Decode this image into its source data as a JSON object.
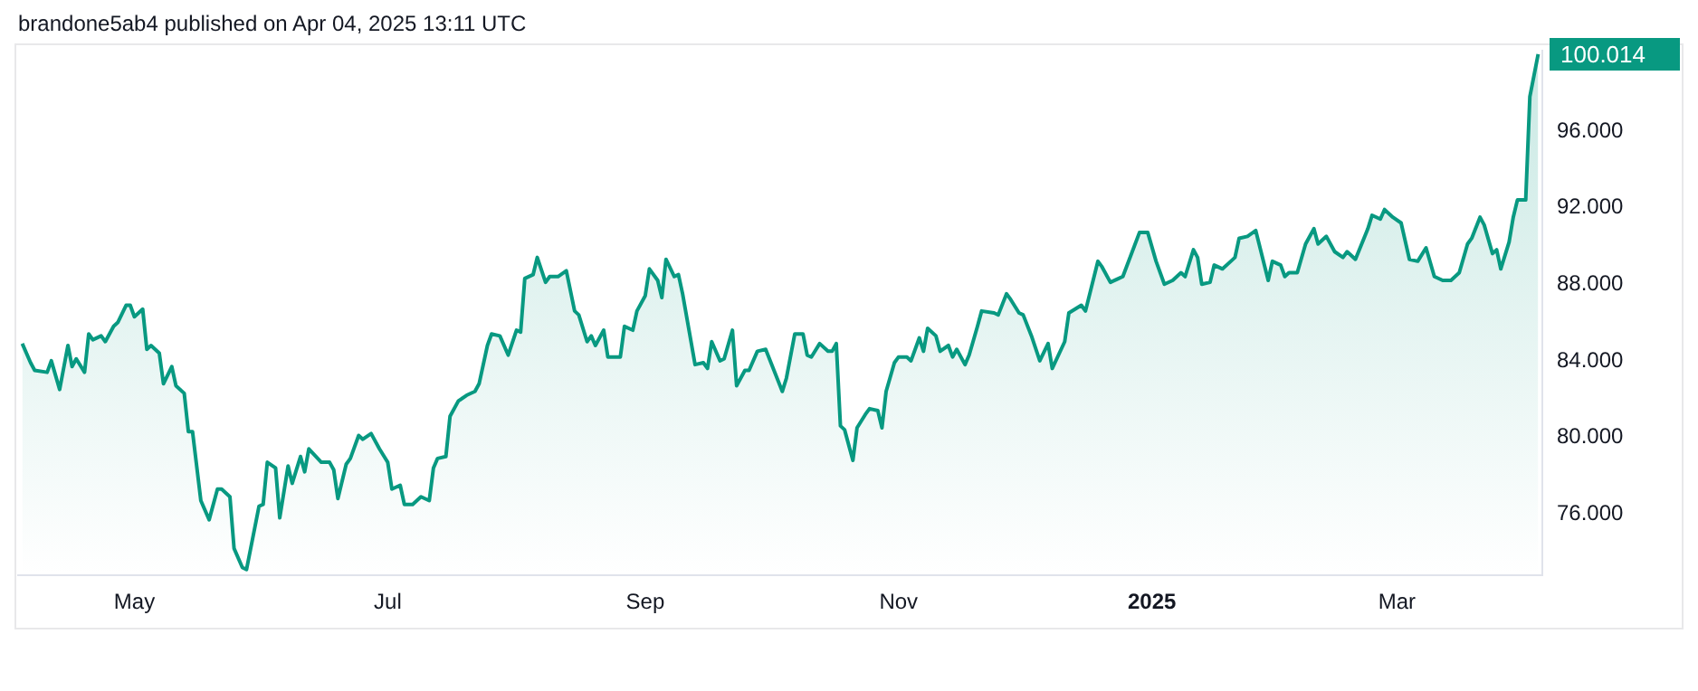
{
  "chart_data": {
    "type": "area",
    "legend": false,
    "grid": false,
    "annotations": [
      "brandone5ab4 published on Apr 04, 2025 13:11 UTC",
      "100.014"
    ],
    "xlim": [
      "2024-04-03",
      "2025-04-05"
    ],
    "xticks": [
      {
        "value": "2024-05-01",
        "label": "May"
      },
      {
        "value": "2024-07-01",
        "label": "Jul"
      },
      {
        "value": "2024-09-01",
        "label": "Sep"
      },
      {
        "value": "2024-11-01",
        "label": "Nov"
      },
      {
        "value": "2025-01-01",
        "label": "2025"
      },
      {
        "value": "2025-03-01",
        "label": "Mar"
      }
    ],
    "ylim": [
      72.8,
      100.2
    ],
    "yticks": [
      {
        "value": 76,
        "label": "76.000"
      },
      {
        "value": 80,
        "label": "80.000"
      },
      {
        "value": 84,
        "label": "84.000"
      },
      {
        "value": 88,
        "label": "88.000"
      },
      {
        "value": 92,
        "label": "92.000"
      },
      {
        "value": 96,
        "label": "96.000"
      }
    ],
    "series": [
      {
        "color": "#089981",
        "x": [
          "2024-04-04",
          "2024-04-06",
          "2024-04-07",
          "2024-04-10",
          "2024-04-11",
          "2024-04-13",
          "2024-04-15",
          "2024-04-16",
          "2024-04-17",
          "2024-04-19",
          "2024-04-20",
          "2024-04-21",
          "2024-04-23",
          "2024-04-24",
          "2024-04-26",
          "2024-04-27",
          "2024-04-29",
          "2024-04-30",
          "2024-05-01",
          "2024-05-03",
          "2024-05-04",
          "2024-05-05",
          "2024-05-07",
          "2024-05-08",
          "2024-05-10",
          "2024-05-11",
          "2024-05-13",
          "2024-05-14",
          "2024-05-15",
          "2024-05-17",
          "2024-05-19",
          "2024-05-21",
          "2024-05-22",
          "2024-05-24",
          "2024-05-25",
          "2024-05-27",
          "2024-05-28",
          "2024-05-31",
          "2024-06-01",
          "2024-06-02",
          "2024-06-04",
          "2024-06-05",
          "2024-06-07",
          "2024-06-08",
          "2024-06-10",
          "2024-06-11",
          "2024-06-12",
          "2024-06-15",
          "2024-06-17",
          "2024-06-18",
          "2024-06-19",
          "2024-06-21",
          "2024-06-22",
          "2024-06-24",
          "2024-06-25",
          "2024-06-27",
          "2024-06-29",
          "2024-07-01",
          "2024-07-02",
          "2024-07-04",
          "2024-07-05",
          "2024-07-07",
          "2024-07-09",
          "2024-07-11",
          "2024-07-12",
          "2024-07-13",
          "2024-07-15",
          "2024-07-16",
          "2024-07-18",
          "2024-07-20",
          "2024-07-22",
          "2024-07-23",
          "2024-07-25",
          "2024-07-26",
          "2024-07-28",
          "2024-07-30",
          "2024-08-01",
          "2024-08-02",
          "2024-08-03",
          "2024-08-05",
          "2024-08-06",
          "2024-08-08",
          "2024-08-09",
          "2024-08-11",
          "2024-08-13",
          "2024-08-15",
          "2024-08-16",
          "2024-08-18",
          "2024-08-19",
          "2024-08-20",
          "2024-08-22",
          "2024-08-23",
          "2024-08-26",
          "2024-08-27",
          "2024-08-29",
          "2024-08-30",
          "2024-09-01",
          "2024-09-02",
          "2024-09-04",
          "2024-09-05",
          "2024-09-06",
          "2024-09-08",
          "2024-09-09",
          "2024-09-10",
          "2024-09-13",
          "2024-09-15",
          "2024-09-16",
          "2024-09-17",
          "2024-09-19",
          "2024-09-20",
          "2024-09-22",
          "2024-09-23",
          "2024-09-25",
          "2024-09-26",
          "2024-09-28",
          "2024-09-30",
          "2024-10-02",
          "2024-10-04",
          "2024-10-05",
          "2024-10-07",
          "2024-10-09",
          "2024-10-10",
          "2024-10-11",
          "2024-10-13",
          "2024-10-15",
          "2024-10-16",
          "2024-10-17",
          "2024-10-18",
          "2024-10-19",
          "2024-10-21",
          "2024-10-22",
          "2024-10-24",
          "2024-10-25",
          "2024-10-27",
          "2024-10-28",
          "2024-10-29",
          "2024-10-31",
          "2024-11-01",
          "2024-11-03",
          "2024-11-04",
          "2024-11-06",
          "2024-11-07",
          "2024-11-08",
          "2024-11-10",
          "2024-11-11",
          "2024-11-13",
          "2024-11-14",
          "2024-11-15",
          "2024-11-17",
          "2024-11-18",
          "2024-11-20",
          "2024-11-21",
          "2024-11-24",
          "2024-11-25",
          "2024-11-27",
          "2024-11-28",
          "2024-11-30",
          "2024-12-01",
          "2024-12-03",
          "2024-12-05",
          "2024-12-07",
          "2024-12-08",
          "2024-12-11",
          "2024-12-12",
          "2024-12-15",
          "2024-12-16",
          "2024-12-19",
          "2024-12-20",
          "2024-12-22",
          "2024-12-24",
          "2024-12-25",
          "2024-12-29",
          "2024-12-31",
          "2025-01-02",
          "2025-01-04",
          "2025-01-06",
          "2025-01-08",
          "2025-01-09",
          "2025-01-11",
          "2025-01-12",
          "2025-01-13",
          "2025-01-15",
          "2025-01-16",
          "2025-01-18",
          "2025-01-20",
          "2025-01-21",
          "2025-01-22",
          "2025-01-24",
          "2025-01-26",
          "2025-01-29",
          "2025-01-30",
          "2025-02-01",
          "2025-02-02",
          "2025-02-03",
          "2025-02-05",
          "2025-02-07",
          "2025-02-09",
          "2025-02-10",
          "2025-02-12",
          "2025-02-14",
          "2025-02-16",
          "2025-02-17",
          "2025-02-18",
          "2025-02-19",
          "2025-02-22",
          "2025-02-23",
          "2025-02-25",
          "2025-02-26",
          "2025-02-28",
          "2025-03-02",
          "2025-03-04",
          "2025-03-06",
          "2025-03-08",
          "2025-03-10",
          "2025-03-12",
          "2025-03-14",
          "2025-03-16",
          "2025-03-18",
          "2025-03-19",
          "2025-03-21",
          "2025-03-22",
          "2025-03-24",
          "2025-03-25",
          "2025-03-26",
          "2025-03-28",
          "2025-03-29",
          "2025-03-30",
          "2025-04-01",
          "2025-04-02",
          "2025-04-04"
        ],
        "values": [
          84.9,
          83.9,
          83.5,
          83.4,
          84.0,
          82.5,
          84.8,
          83.7,
          84.1,
          83.4,
          85.4,
          85.1,
          85.3,
          85.0,
          85.8,
          86.0,
          86.9,
          86.9,
          86.3,
          86.7,
          84.6,
          84.8,
          84.4,
          82.8,
          83.7,
          82.7,
          82.3,
          80.3,
          80.3,
          76.7,
          75.7,
          77.3,
          77.3,
          76.9,
          74.2,
          73.2,
          73.1,
          76.4,
          76.5,
          78.7,
          78.4,
          75.8,
          78.5,
          77.6,
          79.0,
          78.2,
          79.4,
          78.7,
          78.7,
          78.3,
          76.8,
          78.6,
          78.9,
          80.1,
          79.9,
          80.2,
          79.4,
          78.7,
          77.3,
          77.5,
          76.5,
          76.5,
          76.9,
          76.7,
          78.4,
          78.9,
          79.0,
          81.1,
          81.9,
          82.2,
          82.4,
          82.8,
          84.8,
          85.4,
          85.3,
          84.3,
          85.6,
          85.5,
          88.3,
          88.5,
          89.4,
          88.1,
          88.4,
          88.4,
          88.7,
          86.6,
          86.4,
          85.0,
          85.3,
          84.8,
          85.6,
          84.2,
          84.2,
          85.8,
          85.6,
          86.6,
          87.4,
          88.8,
          88.2,
          87.3,
          89.3,
          88.4,
          88.5,
          87.5,
          83.8,
          83.9,
          83.6,
          85.0,
          84.0,
          84.1,
          85.6,
          82.7,
          83.5,
          83.5,
          84.5,
          84.6,
          83.5,
          82.4,
          83.1,
          85.4,
          85.4,
          84.3,
          84.2,
          84.9,
          84.5,
          84.5,
          84.9,
          80.6,
          80.4,
          78.8,
          80.5,
          81.2,
          81.5,
          81.4,
          80.5,
          82.4,
          83.9,
          84.2,
          84.2,
          84.0,
          85.2,
          84.5,
          85.7,
          85.3,
          84.5,
          84.8,
          84.2,
          84.6,
          83.8,
          84.3,
          85.8,
          86.6,
          86.5,
          86.4,
          87.5,
          87.2,
          86.5,
          86.4,
          85.3,
          84.0,
          84.9,
          83.6,
          85.0,
          86.5,
          86.9,
          86.6,
          89.2,
          88.9,
          88.1,
          88.3,
          88.4,
          90.7,
          90.7,
          89.2,
          88.0,
          88.2,
          88.6,
          88.4,
          89.8,
          89.4,
          88.0,
          88.1,
          89.0,
          88.8,
          89.2,
          89.4,
          90.4,
          90.5,
          90.8,
          88.2,
          89.2,
          89.0,
          88.4,
          88.6,
          88.6,
          90.1,
          90.9,
          90.1,
          90.5,
          89.7,
          89.4,
          89.7,
          89.5,
          89.3,
          90.9,
          91.6,
          91.4,
          91.9,
          91.5,
          91.2,
          89.3,
          89.2,
          89.9,
          88.4,
          88.2,
          88.2,
          88.6,
          90.1,
          90.4,
          91.5,
          91.1,
          89.6,
          89.8,
          88.8,
          90.2,
          91.5,
          92.4,
          92.4,
          97.8,
          100.014
        ]
      }
    ]
  }
}
